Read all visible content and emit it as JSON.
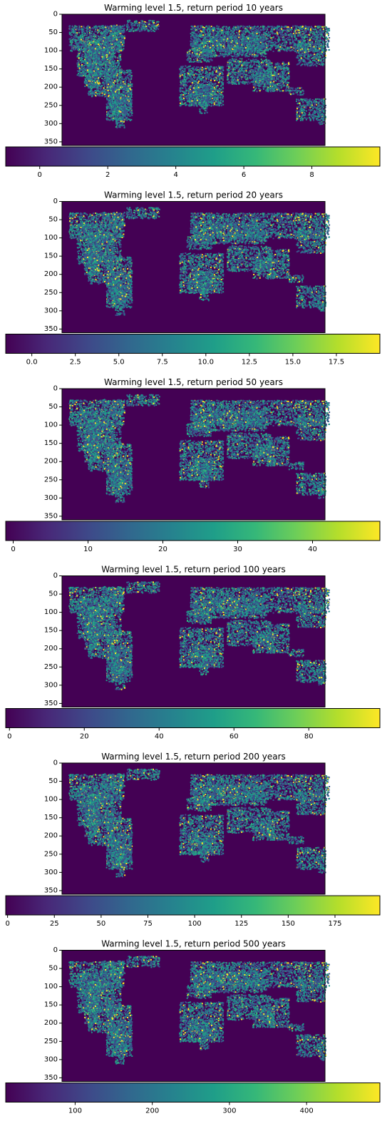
{
  "colormap": [
    "#440154",
    "#482878",
    "#3e4989",
    "#31688e",
    "#26828e",
    "#1f9e89",
    "#35b779",
    "#6ece58",
    "#b5de2b",
    "#fde725"
  ],
  "land_color_low": "#3b528b",
  "land_color_mid": "#21918c",
  "land_color_high": "#fde725",
  "chart_data": [
    {
      "type": "heatmap",
      "title": "Warming level 1.5, return period 10 years",
      "yticks": [
        "0",
        "50",
        "100",
        "150",
        "200",
        "250",
        "300",
        "350"
      ],
      "ylim": [
        0,
        360
      ],
      "colorbar": {
        "range": [
          -1,
          10
        ],
        "ticks": [
          0,
          2,
          4,
          6,
          8
        ],
        "tick_labels": [
          "0",
          "2",
          "4",
          "6",
          "8"
        ]
      }
    },
    {
      "type": "heatmap",
      "title": "Warming level 1.5, return period 20 years",
      "yticks": [
        "0",
        "50",
        "100",
        "150",
        "200",
        "250",
        "300",
        "350"
      ],
      "ylim": [
        0,
        360
      ],
      "colorbar": {
        "range": [
          -1.5,
          20
        ],
        "ticks": [
          0,
          2.5,
          5,
          7.5,
          10,
          12.5,
          15,
          17.5
        ],
        "tick_labels": [
          "0.0",
          "2.5",
          "5.0",
          "7.5",
          "10.0",
          "12.5",
          "15.0",
          "17.5"
        ]
      }
    },
    {
      "type": "heatmap",
      "title": "Warming level 1.5, return period 50 years",
      "yticks": [
        "0",
        "50",
        "100",
        "150",
        "200",
        "250",
        "300",
        "350"
      ],
      "ylim": [
        0,
        360
      ],
      "colorbar": {
        "range": [
          -1,
          49
        ],
        "ticks": [
          0,
          10,
          20,
          30,
          40
        ],
        "tick_labels": [
          "0",
          "10",
          "20",
          "30",
          "40"
        ]
      }
    },
    {
      "type": "heatmap",
      "title": "Warming level 1.5, return period 100 years",
      "yticks": [
        "0",
        "50",
        "100",
        "150",
        "200",
        "250",
        "300",
        "350"
      ],
      "ylim": [
        0,
        360
      ],
      "colorbar": {
        "range": [
          -1,
          99
        ],
        "ticks": [
          0,
          20,
          40,
          60,
          80
        ],
        "tick_labels": [
          "0",
          "20",
          "40",
          "60",
          "80"
        ]
      }
    },
    {
      "type": "heatmap",
      "title": "Warming level 1.5, return period 200 years",
      "yticks": [
        "0",
        "50",
        "100",
        "150",
        "200",
        "250",
        "300",
        "350"
      ],
      "ylim": [
        0,
        360
      ],
      "colorbar": {
        "range": [
          -1,
          199
        ],
        "ticks": [
          0,
          25,
          50,
          75,
          100,
          125,
          150,
          175
        ],
        "tick_labels": [
          "0",
          "25",
          "50",
          "75",
          "100",
          "125",
          "150",
          "175"
        ]
      }
    },
    {
      "type": "heatmap",
      "title": "Warming level 1.5, return period 500 years",
      "yticks": [
        "0",
        "50",
        "100",
        "150",
        "200",
        "250",
        "300",
        "350"
      ],
      "ylim": [
        0,
        360
      ],
      "colorbar": {
        "range": [
          10,
          495
        ],
        "ticks": [
          100,
          200,
          300,
          400
        ],
        "tick_labels": [
          "100",
          "200",
          "300",
          "400"
        ]
      }
    }
  ]
}
